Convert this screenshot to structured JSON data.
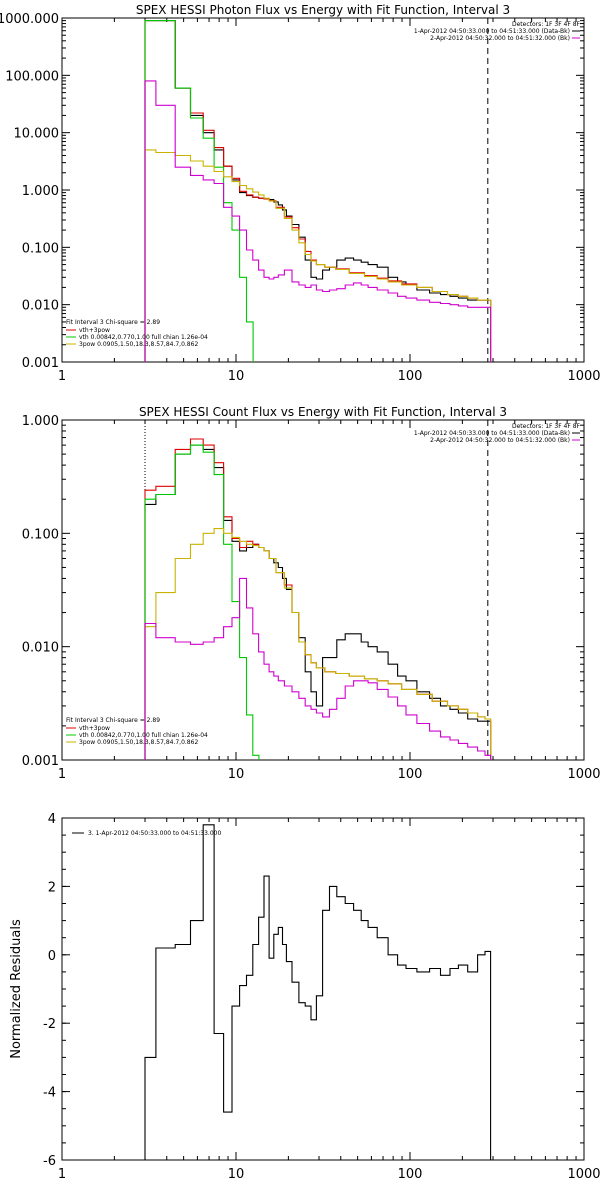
{
  "chart_data": [
    {
      "type": "line",
      "title": "SPEX HESSI Photon Flux vs Energy with Fit Function, Interval 3",
      "xscale": "log",
      "yscale": "log",
      "xlim": [
        1,
        1000
      ],
      "ylim": [
        0.001,
        1000
      ],
      "xticks": [
        "1",
        "10",
        "100",
        "1000"
      ],
      "yticks": [
        "0.001",
        "0.010",
        "0.100",
        "1.000",
        "10.000",
        "100.000",
        "1000.000"
      ],
      "info": {
        "detectors": "Detectors: 1F 3F 4F 8F",
        "time_data": "1-Apr-2012 04:50:33.000 to 04:51:33.000 (Data-Bk)",
        "time_bk": "2-Apr-2012 04:50:32.000 to 04:51:32.000 (Bk)"
      },
      "fit_text": {
        "header": "Fit Interval 3   Chi-square = 2.89",
        "total": "vth+3pow",
        "vth": "vth 0.00842,0.770,1.00  full chian 1.26e-04",
        "pow": "3pow 0.0905,1.50,18.3,8.57,84.7,0.862"
      },
      "markers": {
        "dotted_x": 3,
        "dashed_x": 280
      },
      "series": [
        {
          "key": "data",
          "color": "#000000",
          "x": [
            3,
            4,
            5,
            6,
            7,
            8,
            9,
            10,
            11,
            12,
            13,
            14,
            15,
            16,
            17,
            18,
            19,
            20,
            22,
            24,
            26,
            28,
            30,
            33,
            36,
            40,
            45,
            50,
            55,
            60,
            70,
            80,
            90,
            100,
            120,
            140,
            160,
            180,
            200,
            230,
            260,
            280
          ],
          "y": [
            900,
            900,
            60,
            20,
            10,
            5,
            2.6,
            1.5,
            0.9,
            0.8,
            0.75,
            0.72,
            0.7,
            0.68,
            0.62,
            0.55,
            0.45,
            0.35,
            0.25,
            0.15,
            0.06,
            0.03,
            0.028,
            0.04,
            0.045,
            0.06,
            0.065,
            0.06,
            0.055,
            0.05,
            0.045,
            0.03,
            0.025,
            0.022,
            0.018,
            0.016,
            0.015,
            0.014,
            0.013,
            0.012,
            0.012,
            0.012
          ]
        },
        {
          "key": "total",
          "color": "#e00000",
          "x": [
            3,
            4,
            5,
            6,
            7,
            8,
            9,
            10,
            11,
            12,
            13,
            14,
            15,
            16,
            18,
            20,
            22,
            24,
            26,
            28,
            30,
            35,
            40,
            50,
            60,
            70,
            80,
            100,
            120,
            150,
            180,
            200,
            230,
            260,
            280
          ],
          "y": [
            900,
            900,
            60,
            22,
            11,
            5.5,
            2.6,
            1.6,
            0.95,
            0.82,
            0.75,
            0.72,
            0.7,
            0.65,
            0.5,
            0.34,
            0.22,
            0.14,
            0.085,
            0.06,
            0.05,
            0.045,
            0.042,
            0.036,
            0.032,
            0.029,
            0.026,
            0.023,
            0.02,
            0.017,
            0.015,
            0.014,
            0.013,
            0.012,
            0.012
          ]
        },
        {
          "key": "vth",
          "color": "#00c800",
          "x": [
            3,
            4,
            5,
            6,
            7,
            8,
            9,
            10,
            11,
            12
          ],
          "y": [
            900,
            900,
            60,
            18,
            8,
            2.5,
            0.6,
            0.2,
            0.03,
            0.005
          ]
        },
        {
          "key": "pow",
          "color": "#c8b400",
          "x": [
            3,
            4,
            5,
            6,
            7,
            8,
            9,
            10,
            11,
            12,
            13,
            14,
            15,
            16,
            18,
            20,
            22,
            24,
            26,
            28,
            30,
            35,
            40,
            50,
            60,
            70,
            80,
            100,
            120,
            150,
            180,
            200,
            230,
            260,
            280
          ],
          "y": [
            5,
            4.5,
            4,
            3.2,
            2.6,
            2.1,
            1.7,
            1.4,
            1.2,
            1.05,
            0.92,
            0.82,
            0.72,
            0.64,
            0.48,
            0.32,
            0.2,
            0.12,
            0.075,
            0.058,
            0.05,
            0.045,
            0.041,
            0.035,
            0.031,
            0.028,
            0.025,
            0.022,
            0.02,
            0.017,
            0.015,
            0.014,
            0.013,
            0.012,
            0.012
          ]
        },
        {
          "key": "bk",
          "color": "#d000d0",
          "x": [
            3,
            4,
            5,
            6,
            7,
            8,
            9,
            10,
            11,
            12,
            13,
            14,
            15,
            16,
            17,
            18,
            20,
            22,
            24,
            26,
            28,
            30,
            33,
            36,
            40,
            45,
            50,
            55,
            60,
            70,
            80,
            90,
            100,
            120,
            140,
            160,
            180,
            200,
            230,
            260,
            280
          ],
          "y": [
            80,
            30,
            2.5,
            1.8,
            1.5,
            1.3,
            0.5,
            0.35,
            0.2,
            0.09,
            0.06,
            0.04,
            0.03,
            0.028,
            0.03,
            0.033,
            0.04,
            0.025,
            0.022,
            0.02,
            0.022,
            0.018,
            0.017,
            0.018,
            0.019,
            0.022,
            0.024,
            0.022,
            0.02,
            0.018,
            0.016,
            0.014,
            0.013,
            0.012,
            0.011,
            0.0105,
            0.01,
            0.0095,
            0.009,
            0.009,
            0.009
          ]
        }
      ]
    },
    {
      "type": "line",
      "title": "SPEX HESSI Count Flux vs Energy with Fit Function, Interval 3",
      "xscale": "log",
      "yscale": "log",
      "xlim": [
        1,
        1000
      ],
      "ylim": [
        0.001,
        1.0
      ],
      "xticks": [
        "1",
        "10",
        "100",
        "1000"
      ],
      "yticks": [
        "0.001",
        "0.010",
        "0.100",
        "1.000"
      ],
      "info": {
        "detectors": "Detectors: 1F 3F 4F 8F",
        "time_data": "1-Apr-2012 04:50:33.000 to 04:51:33.000 (Data-Bk)",
        "time_bk": "2-Apr-2012 04:50:32.000 to 04:51:32.000 (Bk)"
      },
      "fit_text": {
        "header": "Fit Interval 3   Chi-square = 2.89",
        "total": "vth+3pow",
        "vth": "vth 0.00842,0.770,1.00  full chian 1.26e-04",
        "pow": "3pow 0.0905,1.50,18.3,8.57,84.7,0.862"
      },
      "markers": {
        "dotted_x": 3,
        "dashed_x": 280
      },
      "series": [
        {
          "key": "data",
          "color": "#000000",
          "x": [
            3,
            4,
            5,
            6,
            7,
            8,
            9,
            10,
            11,
            12,
            13,
            14,
            15,
            16,
            17,
            18,
            19,
            20,
            22,
            24,
            26,
            28,
            30,
            33,
            36,
            40,
            45,
            50,
            55,
            60,
            70,
            80,
            90,
            100,
            120,
            140,
            160,
            180,
            200,
            230,
            260,
            280
          ],
          "y": [
            0.18,
            0.22,
            0.5,
            0.6,
            0.55,
            0.38,
            0.13,
            0.085,
            0.07,
            0.075,
            0.08,
            0.075,
            0.07,
            0.06,
            0.055,
            0.05,
            0.04,
            0.032,
            0.02,
            0.012,
            0.006,
            0.004,
            0.003,
            0.008,
            0.008,
            0.0115,
            0.013,
            0.013,
            0.011,
            0.01,
            0.009,
            0.007,
            0.0055,
            0.005,
            0.004,
            0.0035,
            0.003,
            0.0028,
            0.0026,
            0.0023,
            0.0022,
            0.0022
          ]
        },
        {
          "key": "total",
          "color": "#e00000",
          "x": [
            3,
            4,
            5,
            6,
            7,
            8,
            9,
            10,
            11,
            12,
            13,
            14,
            15,
            16,
            18,
            20,
            22,
            24,
            26,
            28,
            30,
            35,
            40,
            50,
            60,
            70,
            80,
            100,
            120,
            150,
            180,
            200,
            230,
            260,
            280
          ],
          "y": [
            0.24,
            0.26,
            0.55,
            0.68,
            0.6,
            0.42,
            0.14,
            0.09,
            0.075,
            0.085,
            0.08,
            0.075,
            0.07,
            0.06,
            0.045,
            0.035,
            0.02,
            0.011,
            0.0085,
            0.0072,
            0.0065,
            0.006,
            0.0058,
            0.0055,
            0.0052,
            0.005,
            0.0047,
            0.0042,
            0.0038,
            0.0033,
            0.003,
            0.0028,
            0.0026,
            0.0024,
            0.0023
          ]
        },
        {
          "key": "vth",
          "color": "#00c800",
          "x": [
            3,
            4,
            5,
            6,
            7,
            8,
            9,
            10,
            11,
            12,
            13
          ],
          "y": [
            0.2,
            0.22,
            0.5,
            0.6,
            0.52,
            0.33,
            0.08,
            0.025,
            0.008,
            0.0025,
            0.0011
          ]
        },
        {
          "key": "pow",
          "color": "#c8b400",
          "x": [
            3,
            4,
            5,
            6,
            7,
            8,
            9,
            10,
            11,
            12,
            13,
            14,
            15,
            16,
            18,
            20,
            22,
            24,
            26,
            28,
            30,
            35,
            40,
            50,
            60,
            70,
            80,
            100,
            120,
            150,
            180,
            200,
            230,
            260,
            280
          ],
          "y": [
            0.015,
            0.03,
            0.06,
            0.08,
            0.1,
            0.11,
            0.1,
            0.092,
            0.085,
            0.08,
            0.078,
            0.075,
            0.07,
            0.06,
            0.045,
            0.033,
            0.02,
            0.011,
            0.0085,
            0.0072,
            0.0065,
            0.006,
            0.0058,
            0.0055,
            0.0052,
            0.005,
            0.0047,
            0.0042,
            0.0038,
            0.0033,
            0.003,
            0.0028,
            0.0026,
            0.0024,
            0.0023
          ]
        },
        {
          "key": "bk",
          "color": "#d000d0",
          "x": [
            3,
            4,
            5,
            6,
            7,
            8,
            9,
            10,
            11,
            12,
            13,
            14,
            15,
            16,
            17,
            18,
            20,
            22,
            24,
            26,
            28,
            30,
            33,
            36,
            40,
            45,
            50,
            55,
            60,
            70,
            80,
            90,
            100,
            120,
            140,
            160,
            180,
            200,
            230,
            260,
            280
          ],
          "y": [
            0.016,
            0.012,
            0.011,
            0.0105,
            0.011,
            0.012,
            0.015,
            0.018,
            0.04,
            0.022,
            0.013,
            0.009,
            0.007,
            0.006,
            0.0055,
            0.005,
            0.0045,
            0.004,
            0.0035,
            0.003,
            0.0028,
            0.0026,
            0.0024,
            0.0028,
            0.0035,
            0.0045,
            0.005,
            0.005,
            0.0048,
            0.0042,
            0.0036,
            0.003,
            0.0025,
            0.0021,
            0.0018,
            0.0016,
            0.0015,
            0.0014,
            0.0013,
            0.0012,
            0.0011
          ]
        }
      ]
    },
    {
      "type": "line",
      "xscale": "log",
      "yscale": "linear",
      "xlim": [
        1,
        1000
      ],
      "ylim": [
        -6,
        4
      ],
      "xticks": [
        "1",
        "10",
        "100",
        "1000"
      ],
      "yticks": [
        "-6",
        "-4",
        "-2",
        "0",
        "2",
        "4"
      ],
      "ylabel": "Normalized Residuals",
      "legend": "3.  1-Apr-2012 04:50:33.000 to 04:51:33.000",
      "series": [
        {
          "key": "residuals",
          "color": "#000000",
          "x": [
            3,
            4,
            5,
            6,
            7,
            8,
            9,
            10,
            11,
            12,
            13,
            14,
            15,
            16,
            17,
            18,
            19,
            20,
            22,
            24,
            26,
            28,
            30,
            33,
            36,
            40,
            45,
            50,
            55,
            60,
            70,
            80,
            90,
            100,
            120,
            140,
            160,
            180,
            200,
            230,
            260,
            280
          ],
          "y": [
            -3.0,
            0.2,
            0.3,
            1.0,
            3.8,
            -2.3,
            -4.6,
            -1.5,
            -0.9,
            -0.6,
            0.3,
            1.1,
            2.3,
            -0.1,
            0.6,
            0.8,
            0.3,
            -0.2,
            -0.8,
            -1.4,
            -1.5,
            -1.9,
            -1.2,
            1.3,
            2.0,
            1.7,
            1.5,
            1.3,
            1.0,
            0.8,
            0.5,
            0.0,
            -0.3,
            -0.4,
            -0.5,
            -0.4,
            -0.6,
            -0.4,
            -0.3,
            -0.5,
            0.0,
            0.1
          ]
        }
      ]
    }
  ]
}
